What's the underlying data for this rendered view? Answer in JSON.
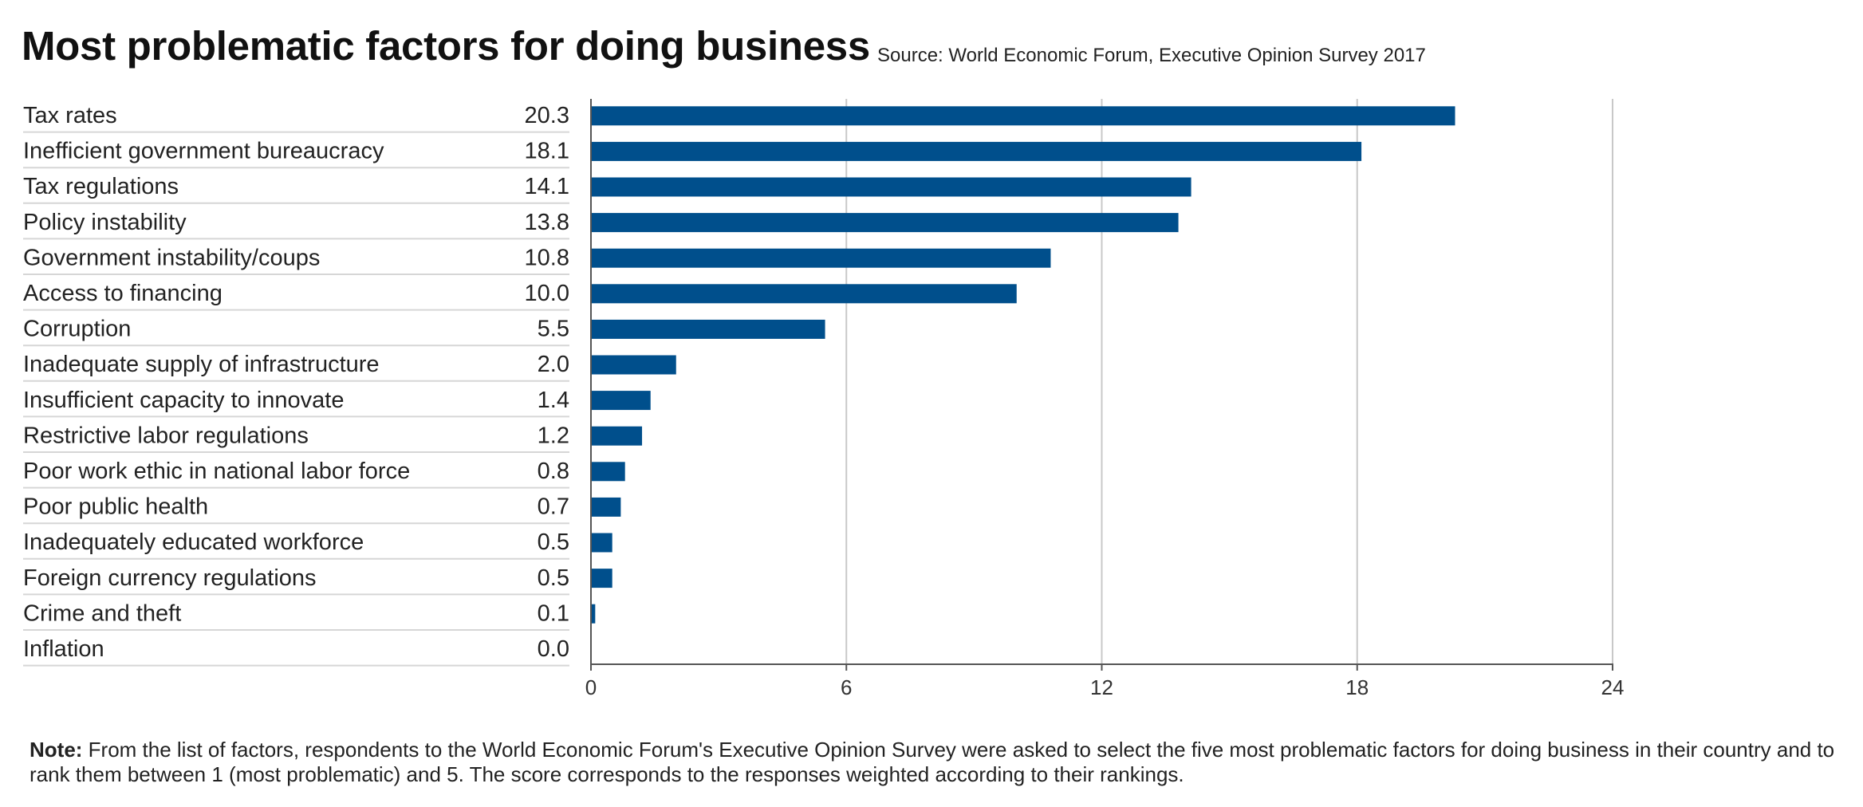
{
  "chart_data": {
    "type": "bar",
    "orientation": "horizontal",
    "title": "Most problematic factors for doing business",
    "subtitle": "Source: World Economic Forum, Executive Opinion Survey 2017",
    "categories": [
      "Tax rates",
      "Inefficient government bureaucracy",
      "Tax regulations",
      "Policy instability",
      "Government instability/coups",
      "Access to financing",
      "Corruption",
      "Inadequate supply of infrastructure",
      "Insufficient capacity to innovate",
      "Restrictive labor regulations",
      "Poor work ethic in national labor force",
      "Poor public health",
      "Inadequately educated workforce",
      "Foreign currency regulations",
      "Crime and theft",
      "Inflation"
    ],
    "values": [
      20.3,
      18.1,
      14.1,
      13.8,
      10.8,
      10.0,
      5.5,
      2.0,
      1.4,
      1.2,
      0.8,
      0.7,
      0.5,
      0.5,
      0.1,
      0.0
    ],
    "value_labels": [
      "20.3",
      "18.1",
      "14.1",
      "13.8",
      "10.8",
      "10.0",
      "5.5",
      "2.0",
      "1.4",
      "1.2",
      "0.8",
      "0.7",
      "0.5",
      "0.5",
      "0.1",
      "0.0"
    ],
    "xlim": [
      0,
      24
    ],
    "xticks": [
      0,
      6,
      12,
      18,
      24
    ],
    "xlabel": "",
    "ylabel": "",
    "grid": true,
    "legend": "none",
    "bar_color": "#004f8c",
    "note_label": "Note:",
    "note_text": " From the list of factors, respondents to the World Economic Forum's Executive Opinion Survey were asked to select the five most problematic factors for doing business in their country and to rank them between 1 (most problematic) and 5. The score corresponds to the responses weighted according to their rankings."
  }
}
